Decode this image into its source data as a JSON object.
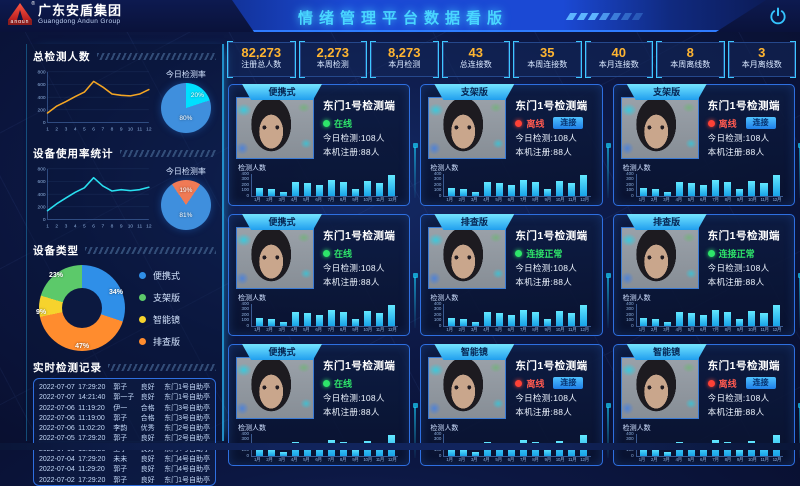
{
  "header": {
    "title": "情绪管理平台数据看版",
    "logo": {
      "cn": "广东安盾集团",
      "en": "Guangdong Andun Group",
      "mark": "andun",
      "reg": "®"
    }
  },
  "stats": [
    {
      "value": "82,273",
      "label": "注册总人数"
    },
    {
      "value": "2,273",
      "label": "本周检测"
    },
    {
      "value": "8,273",
      "label": "本月检测"
    },
    {
      "value": "43",
      "label": "总连接数"
    },
    {
      "value": "35",
      "label": "本周连接数"
    },
    {
      "value": "40",
      "label": "本月连接数"
    },
    {
      "value": "8",
      "label": "本周离线数"
    },
    {
      "value": "3",
      "label": "本月离线数"
    }
  ],
  "sidebar": {
    "s1": {
      "title": "总检测人数",
      "line": {
        "type": "line",
        "color": "#f5a623",
        "x": [
          "1",
          "2",
          "3",
          "4",
          "5",
          "6",
          "7",
          "8",
          "9",
          "10",
          "11",
          "12"
        ],
        "values": [
          150,
          260,
          330,
          410,
          480,
          650,
          560,
          450,
          430,
          420,
          450,
          520
        ],
        "yticks": [
          0,
          200,
          400,
          600,
          800
        ],
        "ymax": 800
      },
      "pie": {
        "title": "今日检测率",
        "type": "pie",
        "slices": [
          {
            "label": "20%",
            "value": 20,
            "color": "#00e0ff"
          },
          {
            "label": "80%",
            "value": 80,
            "color": "#3f8fdd"
          }
        ]
      }
    },
    "s2": {
      "title": "设备使用率统计",
      "line": {
        "type": "line",
        "color": "#29e0f0",
        "x": [
          "1",
          "2",
          "3",
          "4",
          "5",
          "6",
          "7",
          "8",
          "9",
          "10",
          "11",
          "12"
        ],
        "values": [
          140,
          250,
          340,
          430,
          500,
          660,
          530,
          450,
          470,
          455,
          470,
          510
        ],
        "yticks": [
          0,
          200,
          400,
          600,
          800
        ],
        "ymax": 800
      },
      "pie": {
        "title": "今日检测率",
        "type": "pie",
        "slices": [
          {
            "label": "19%",
            "value": 19,
            "color": "#f07a55"
          },
          {
            "label": "81%",
            "value": 81,
            "color": "#3f8fdd"
          }
        ]
      }
    },
    "s3": {
      "title": "设备类型",
      "donut": {
        "type": "pie",
        "slices": [
          {
            "label": "便携式",
            "pct_label": "34%",
            "value": 34,
            "color": "#2f8fe8"
          },
          {
            "label": "排查版",
            "pct_label": "47%",
            "value": 47,
            "color": "#ff8c2e"
          },
          {
            "label": "智能镜",
            "pct_label": "9%",
            "value": 9,
            "color": "#f6d32d"
          },
          {
            "label": "支架版",
            "pct_label": "23%",
            "value": 23,
            "color": "#5cc96a"
          }
        ],
        "legend": [
          {
            "label": "便携式",
            "color": "#2f8fe8"
          },
          {
            "label": "支架版",
            "color": "#5cc96a"
          },
          {
            "label": "智能镜",
            "color": "#f6d32d"
          },
          {
            "label": "排查版",
            "color": "#ff8c2e"
          }
        ]
      }
    },
    "s4": {
      "title": "实时检测记录",
      "rows": [
        [
          "2022-07-07",
          "17:29:20",
          "郭子",
          "良好",
          "东门1号自助亭"
        ],
        [
          "2022-07-07",
          "14:21:40",
          "郭一子",
          "良好",
          "东门1号自助亭"
        ],
        [
          "2022-07-06",
          "11:19:20",
          "伊一",
          "合格",
          "东门3号自助亭"
        ],
        [
          "2022-07-06",
          "11:19:00",
          "郭子",
          "合格",
          "东门3号自助亭"
        ],
        [
          "2022-07-06",
          "11:02:20",
          "李韵",
          "优秀",
          "东门2号自助亭"
        ],
        [
          "2022-07-05",
          "17:29:20",
          "郭子",
          "良好",
          "东门2号自助亭"
        ],
        [
          "2022-07-05",
          "13:19:20",
          "王子",
          "良好",
          "东门4号自助亭"
        ],
        [
          "2022-07-04",
          "17:29:20",
          "未未",
          "良好",
          "东门4号自助亭"
        ],
        [
          "2022-07-04",
          "11:29:20",
          "郭子",
          "良好",
          "东门4号自助亭"
        ],
        [
          "2022-07-02",
          "17:29:20",
          "郭子",
          "良好",
          "东门1号自助亭"
        ]
      ]
    }
  },
  "cards_common": {
    "chart_title": "检测人数",
    "today": "今日检测:108人",
    "reg": "本机注册:88人",
    "bar": {
      "type": "bar",
      "categories": [
        "1月",
        "2月",
        "3月",
        "4月",
        "5月",
        "6月",
        "7月",
        "8月",
        "9月",
        "10月",
        "11月",
        "12月"
      ],
      "values": [
        150,
        120,
        80,
        250,
        230,
        200,
        300,
        260,
        130,
        280,
        230,
        380
      ],
      "yticks": [
        400,
        300,
        200,
        100,
        0
      ],
      "ymax": 400
    }
  },
  "cards": [
    {
      "tab": "便携式",
      "name": "东门1号检测端",
      "status": "在线",
      "state": "online",
      "connect": null
    },
    {
      "tab": "支架版",
      "name": "东门1号检测端",
      "status": "离线",
      "state": "offline",
      "connect": "连接"
    },
    {
      "tab": "支架版",
      "name": "东门1号检测端",
      "status": "离线",
      "state": "offline",
      "connect": "连接"
    },
    {
      "tab": "便携式",
      "name": "东门1号检测端",
      "status": "在线",
      "state": "online",
      "connect": null
    },
    {
      "tab": "排查版",
      "name": "东门1号检测端",
      "status": "连接正常",
      "state": "online",
      "connect": null
    },
    {
      "tab": "排查版",
      "name": "东门1号检测端",
      "status": "连接正常",
      "state": "online",
      "connect": null
    },
    {
      "tab": "便携式",
      "name": "东门1号检测端",
      "status": "在线",
      "state": "online",
      "connect": null
    },
    {
      "tab": "智能镜",
      "name": "东门1号检测端",
      "status": "离线",
      "state": "offline",
      "connect": "连接"
    },
    {
      "tab": "智能镜",
      "name": "东门1号检测端",
      "status": "离线",
      "state": "offline",
      "connect": "连接"
    }
  ]
}
